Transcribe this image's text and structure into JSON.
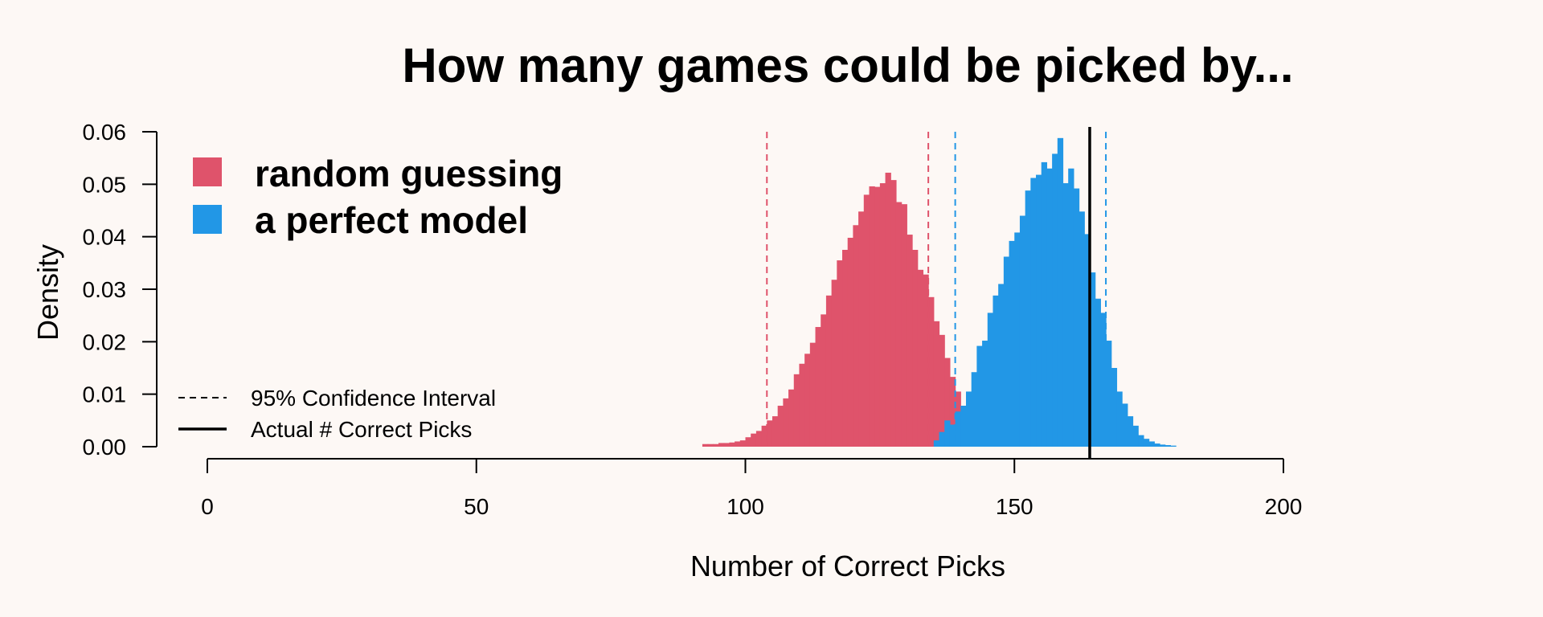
{
  "chart_data": {
    "type": "histogram",
    "title": "How many games could be picked by...",
    "xlabel": "Number of Correct Picks",
    "ylabel": "Density",
    "xlim": [
      0,
      200
    ],
    "ylim": [
      0,
      0.06
    ],
    "x_ticks": [
      "0",
      "50",
      "100",
      "150",
      "200"
    ],
    "y_ticks": [
      "0.00",
      "0.01",
      "0.02",
      "0.03",
      "0.04",
      "0.05",
      "0.06"
    ],
    "bin_width": 1,
    "series": [
      {
        "name": "random guessing",
        "color": "#df536b",
        "bin_start": 92,
        "density": [
          0.0005,
          0.0005,
          0.0005,
          0.0007,
          0.0007,
          0.0008,
          0.001,
          0.0012,
          0.0018,
          0.0025,
          0.003,
          0.004,
          0.005,
          0.0058,
          0.0078,
          0.0092,
          0.0109,
          0.0138,
          0.0158,
          0.0177,
          0.0198,
          0.0228,
          0.0252,
          0.0288,
          0.0318,
          0.0355,
          0.0375,
          0.0398,
          0.0422,
          0.0448,
          0.048,
          0.0496,
          0.0495,
          0.0502,
          0.0522,
          0.0508,
          0.0466,
          0.0462,
          0.0404,
          0.0375,
          0.0337,
          0.0328,
          0.0285,
          0.0239,
          0.0213,
          0.0169,
          0.0133,
          0.0105,
          0.0078,
          0.0055,
          0.0036,
          0.0025,
          0.0018,
          0.0012,
          0.0008,
          0.0006,
          0.0004,
          0.0004
        ]
      },
      {
        "name": "a perfect model",
        "color": "#2297e6",
        "bin_start": 135,
        "density": [
          0.0012,
          0.0028,
          0.005,
          0.0042,
          0.0067,
          0.0078,
          0.0105,
          0.0142,
          0.0192,
          0.0202,
          0.0255,
          0.0288,
          0.031,
          0.0362,
          0.0392,
          0.0408,
          0.044,
          0.0488,
          0.0512,
          0.0518,
          0.0542,
          0.053,
          0.0558,
          0.0588,
          0.0502,
          0.053,
          0.0492,
          0.0448,
          0.0405,
          0.0332,
          0.0282,
          0.0255,
          0.0202,
          0.015,
          0.0105,
          0.0082,
          0.0058,
          0.004,
          0.0022,
          0.0015,
          0.001,
          0.0006,
          0.0004,
          0.0003,
          0.0002
        ]
      }
    ],
    "confidence_intervals": [
      {
        "series": "random guessing",
        "lower": 104,
        "upper": 134,
        "color": "#df536b"
      },
      {
        "series": "a perfect model",
        "lower": 139,
        "upper": 167,
        "color": "#2297e6"
      }
    ],
    "actual_correct_picks": 164,
    "legend": {
      "position": "top-left",
      "entries": [
        {
          "label": "random guessing",
          "color": "#df536b"
        },
        {
          "label": "a perfect model",
          "color": "#2297e6"
        }
      ]
    },
    "line_legend": {
      "position": "bottom-left",
      "entries": [
        {
          "label": "95% Confidence Interval",
          "style": "dashed"
        },
        {
          "label": "Actual # Correct Picks",
          "style": "solid"
        }
      ]
    }
  }
}
